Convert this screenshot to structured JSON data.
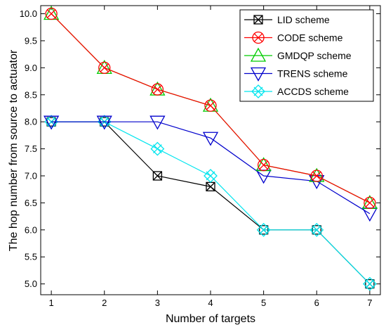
{
  "chart_data": {
    "type": "line",
    "title": "",
    "xlabel": "Number of targets",
    "ylabel": "The hop number from source to actuator",
    "x": [
      1,
      2,
      3,
      4,
      5,
      6,
      7
    ],
    "xlim": [
      0.8,
      7.2
    ],
    "ylim": [
      4.8,
      10.15
    ],
    "xticks": [
      "1",
      "2",
      "3",
      "4",
      "5",
      "6",
      "7"
    ],
    "yticks": [
      "5.0",
      "5.5",
      "6.0",
      "6.5",
      "7.0",
      "7.5",
      "8.0",
      "8.5",
      "9.0",
      "9.5",
      "10.0"
    ],
    "grid": false,
    "legend_position": "top-right",
    "series": [
      {
        "name": "LID scheme",
        "color": "#000000",
        "marker": "boxed-x",
        "values": [
          8.0,
          8.0,
          7.0,
          6.8,
          6.0,
          6.0,
          5.0
        ]
      },
      {
        "name": "CODE scheme",
        "color": "#ff0000",
        "marker": "circle-x",
        "values": [
          10.0,
          9.0,
          8.6,
          8.3,
          7.2,
          7.0,
          6.5
        ]
      },
      {
        "name": "GMDQP scheme",
        "color": "#00cc00",
        "marker": "triangle",
        "values": [
          10.0,
          9.0,
          8.6,
          8.3,
          7.2,
          7.0,
          6.5
        ]
      },
      {
        "name": "TRENS scheme",
        "color": "#0000cc",
        "marker": "triangle-down",
        "values": [
          8.0,
          8.0,
          8.0,
          7.7,
          7.0,
          6.9,
          6.3
        ]
      },
      {
        "name": "ACCDS scheme",
        "color": "#00e5ee",
        "marker": "diamond-x",
        "values": [
          8.0,
          8.0,
          7.5,
          7.0,
          6.0,
          6.0,
          5.0
        ]
      }
    ]
  }
}
